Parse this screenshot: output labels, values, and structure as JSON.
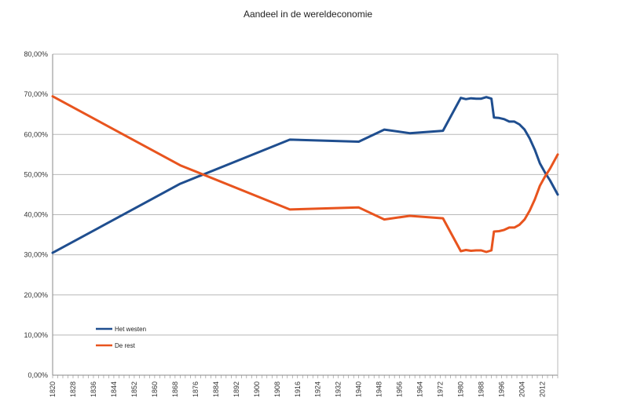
{
  "chart_data": {
    "type": "line",
    "title": "Aandeel in de wereldeconomie",
    "xlabel": "",
    "ylabel": "",
    "xlim": [
      1820,
      2018
    ],
    "ylim": [
      0,
      80
    ],
    "x_tick_labels": [
      "1820",
      "1828",
      "1836",
      "1844",
      "1852",
      "1860",
      "1868",
      "1876",
      "1884",
      "1892",
      "1900",
      "1908",
      "1916",
      "1924",
      "1932",
      "1940",
      "1948",
      "1956",
      "1964",
      "1972",
      "1980",
      "1988",
      "1996",
      "2004",
      "2012"
    ],
    "y_tick_labels": [
      "0,00%",
      "10,00%",
      "20,00%",
      "30,00%",
      "40,00%",
      "50,00%",
      "60,00%",
      "70,00%",
      "80,00%"
    ],
    "grid": "horizontal",
    "legend_position": "bottom-left",
    "series": [
      {
        "name": "Het westen",
        "color": "#1f4e8f",
        "x": [
          1820,
          1870,
          1913,
          1940,
          1950,
          1960,
          1973,
          1980,
          1982,
          1984,
          1986,
          1988,
          1990,
          1992,
          1993,
          1995,
          1997,
          1999,
          2001,
          2003,
          2005,
          2007,
          2009,
          2011,
          2013,
          2015,
          2018
        ],
        "y": [
          30.5,
          47.7,
          58.7,
          58.2,
          61.2,
          60.3,
          60.9,
          69.1,
          68.8,
          69.0,
          68.9,
          68.9,
          69.3,
          68.9,
          64.2,
          64.1,
          63.8,
          63.2,
          63.2,
          62.5,
          61.2,
          59.0,
          56.2,
          52.8,
          50.5,
          48.5,
          45.0
        ]
      },
      {
        "name": "De rest",
        "color": "#e8541e",
        "x": [
          1820,
          1870,
          1913,
          1940,
          1950,
          1960,
          1973,
          1980,
          1982,
          1984,
          1986,
          1988,
          1990,
          1992,
          1993,
          1995,
          1997,
          1999,
          2001,
          2003,
          2005,
          2007,
          2009,
          2011,
          2013,
          2015,
          2018
        ],
        "y": [
          69.5,
          52.3,
          41.3,
          41.8,
          38.8,
          39.7,
          39.1,
          30.9,
          31.2,
          31.0,
          31.1,
          31.1,
          30.7,
          31.1,
          35.8,
          35.9,
          36.2,
          36.8,
          36.8,
          37.5,
          38.8,
          41.0,
          43.8,
          47.2,
          49.5,
          51.5,
          55.0
        ]
      }
    ]
  }
}
